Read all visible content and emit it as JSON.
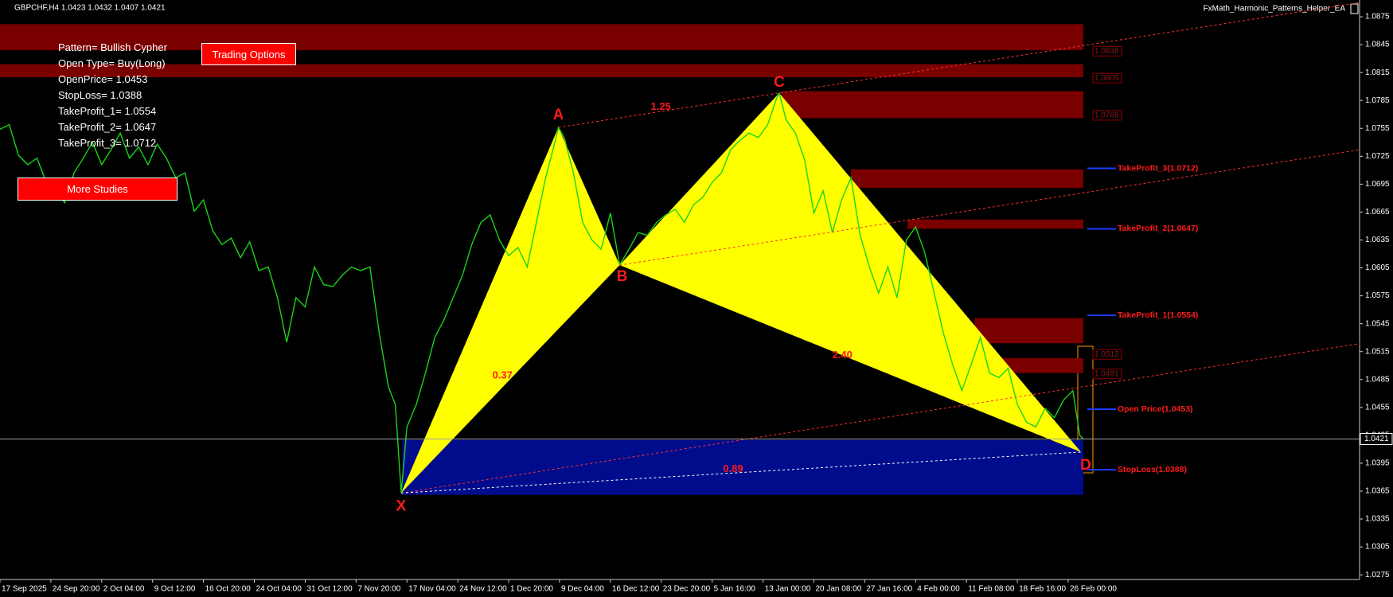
{
  "chart_data": {
    "type": "line",
    "title": "GBPCHF,H4  1.0423 1.0432 1.0407 1.0421",
    "ea_name": "FxMath_Harmonic_Patterns_Helper_EA",
    "color": "#19d419",
    "x": [
      0,
      8,
      16,
      24,
      32,
      40,
      48,
      56,
      64,
      72,
      80,
      88,
      96,
      104,
      112,
      120,
      128,
      136,
      144,
      152,
      160,
      168,
      176,
      184,
      192,
      200,
      208,
      216,
      224,
      232,
      240,
      248,
      256,
      264,
      272,
      280,
      288,
      296,
      304,
      312,
      320,
      328,
      336,
      342,
      347,
      352,
      360,
      368,
      376,
      384,
      392,
      400,
      408,
      416,
      424,
      432,
      440,
      448,
      456,
      464,
      472,
      480,
      483,
      488,
      496,
      504,
      512,
      520,
      528,
      536,
      544,
      552,
      560,
      568,
      576,
      584,
      592,
      600,
      608,
      616,
      624,
      632,
      640,
      648,
      656,
      664,
      672,
      674,
      680,
      688,
      696,
      704,
      712,
      720,
      728,
      736,
      744,
      752,
      760,
      768,
      776,
      784,
      792,
      800,
      808,
      816,
      824,
      832,
      840,
      848,
      856,
      864,
      872,
      880,
      888,
      896,
      904,
      912,
      920,
      928,
      934,
      937
    ],
    "values": [
      1.0754,
      1.0759,
      1.0726,
      1.0716,
      1.0723,
      1.0697,
      1.0688,
      1.0675,
      1.0707,
      1.0723,
      1.074,
      1.0716,
      1.0732,
      1.075,
      1.0723,
      1.0735,
      1.0716,
      1.0738,
      1.0723,
      1.0702,
      1.0707,
      1.0666,
      1.0678,
      1.0645,
      1.063,
      1.0637,
      1.0616,
      1.0633,
      1.0602,
      1.0606,
      1.0573,
      1.0525,
      1.0573,
      1.0563,
      1.0606,
      1.0587,
      1.0585,
      1.0597,
      1.0606,
      1.0602,
      1.0606,
      1.0535,
      1.0477,
      1.0458,
      1.0363,
      1.0434,
      1.0458,
      1.0492,
      1.053,
      1.0549,
      1.0573,
      1.0597,
      1.063,
      1.0654,
      1.0662,
      1.0635,
      1.0618,
      1.0627,
      1.0606,
      1.0654,
      1.0702,
      1.074,
      1.0756,
      1.0745,
      1.0707,
      1.0654,
      1.0635,
      1.0625,
      1.0664,
      1.0608,
      1.0625,
      1.0643,
      1.064,
      1.0654,
      1.0662,
      1.0668,
      1.0654,
      1.0673,
      1.0681,
      1.0697,
      1.0707,
      1.0732,
      1.0742,
      1.075,
      1.0745,
      1.0759,
      1.0788,
      1.0793,
      1.0764,
      1.075,
      1.0721,
      1.0664,
      1.0688,
      1.0643,
      1.0678,
      1.0702,
      1.064,
      1.0606,
      1.0578,
      1.0606,
      1.0573,
      1.0635,
      1.0649,
      1.0621,
      1.0578,
      1.0535,
      1.0501,
      1.0473,
      1.0501,
      1.053,
      1.0492,
      1.0487,
      1.0497,
      1.0458,
      1.0439,
      1.0434,
      1.0454,
      1.0444,
      1.0463,
      1.0473,
      1.0425,
      1.0421
    ],
    "xlim": [
      0,
      1176
    ],
    "ylim": [
      1.027,
      1.0893
    ],
    "xticks": [
      {
        "value": 0,
        "label": "17 Sep 2025"
      },
      {
        "value": 44,
        "label": "24 Sep 20:00"
      },
      {
        "value": 88,
        "label": "2 Oct 04:00"
      },
      {
        "value": 132,
        "label": "9 Oct 12:00"
      },
      {
        "value": 176,
        "label": "16 Oct 20:00"
      },
      {
        "value": 220,
        "label": "24 Oct 04:00"
      },
      {
        "value": 264,
        "label": "31 Oct 12:00"
      },
      {
        "value": 308,
        "label": "7 Nov 20:00"
      },
      {
        "value": 352,
        "label": "17 Nov 04:00"
      },
      {
        "value": 396,
        "label": "24 Nov 12:00"
      },
      {
        "value": 440,
        "label": "1 Dec 20:00"
      },
      {
        "value": 484,
        "label": "9 Dec 04:00"
      },
      {
        "value": 528,
        "label": "16 Dec 12:00"
      },
      {
        "value": 572,
        "label": "23 Dec 20:00"
      },
      {
        "value": 616,
        "label": "5 Jan 16:00"
      },
      {
        "value": 660,
        "label": "13 Jan 00:00"
      },
      {
        "value": 704,
        "label": "20 Jan 08:00"
      },
      {
        "value": 748,
        "label": "27 Jan 16:00"
      },
      {
        "value": 792,
        "label": "4 Feb 00:00"
      },
      {
        "value": 836,
        "label": "11 Feb 08:00"
      },
      {
        "value": 880,
        "label": "18 Feb 16:00"
      },
      {
        "value": 924,
        "label": "26 Feb 00:00"
      }
    ],
    "yticks": [
      1.0875,
      1.0845,
      1.0815,
      1.0785,
      1.0755,
      1.0725,
      1.0695,
      1.0665,
      1.0635,
      1.0605,
      1.0575,
      1.0545,
      1.0515,
      1.0485,
      1.0455,
      1.0425,
      1.0395,
      1.0365,
      1.0335,
      1.0305,
      1.0275
    ],
    "current_price": 1.0421,
    "pattern_points": [
      {
        "label": "X",
        "x": 347,
        "price": 1.0363
      },
      {
        "label": "A",
        "x": 483,
        "price": 1.0756
      },
      {
        "label": "B",
        "x": 536,
        "price": 1.0608
      },
      {
        "label": "C",
        "x": 674,
        "price": 1.0793
      },
      {
        "label": "D",
        "x": 935,
        "price": 1.0407
      }
    ],
    "pattern_color": "#ffff00",
    "ratios": [
      "0.37",
      "1.25",
      "2.40",
      "0.89"
    ],
    "zones": [
      {
        "start": 0,
        "end": 937,
        "top": 1.0867,
        "bottom": 1.0839,
        "color": "#7a0000"
      },
      {
        "start": 0,
        "end": 937,
        "top": 1.0824,
        "bottom": 1.081,
        "color": "#7a0000"
      },
      {
        "start": 676,
        "end": 937,
        "top": 1.0795,
        "bottom": 1.0766,
        "color": "#7a0000"
      },
      {
        "start": 736,
        "end": 937,
        "top": 1.0711,
        "bottom": 1.0691,
        "color": "#7a0000"
      },
      {
        "start": 785,
        "end": 937,
        "top": 1.0657,
        "bottom": 1.0647,
        "color": "#7a0000"
      },
      {
        "start": 843,
        "end": 937,
        "top": 1.0551,
        "bottom": 1.0524,
        "color": "#7a0000"
      },
      {
        "start": 843,
        "end": 937,
        "top": 1.0508,
        "bottom": 1.0492,
        "color": "#7a0000"
      },
      {
        "start": 348,
        "end": 937,
        "top": 1.042,
        "bottom": 1.0361,
        "color": "#000c8c"
      }
    ],
    "zone_labels": [
      {
        "label": "1.0838",
        "value": 1.0838
      },
      {
        "label": "1.0809",
        "value": 1.0809
      },
      {
        "label": "1.0769",
        "value": 1.0769
      },
      {
        "label": "1.0512",
        "value": 1.0512
      },
      {
        "label": "1.0491",
        "value": 1.0491
      }
    ],
    "levels": [
      {
        "label": "TakeProfit_3(1.0712)",
        "value": 1.0712
      },
      {
        "label": "TakeProfit_2(1.0647)",
        "value": 1.0647
      },
      {
        "label": "TakeProfit_1(1.0554)",
        "value": 1.0554
      },
      {
        "label": "Open Price(1.0453)",
        "value": 1.0453
      },
      {
        "label": "StopLoss(1.0388)",
        "value": 1.0388
      }
    ],
    "info": [
      "Pattern= Bullish Cypher",
      "Open Type= Buy(Long)",
      "OpenPrice= 1.0453",
      "StopLoss= 1.0388",
      "TakeProfit_1= 1.0554",
      "TakeProfit_2= 1.0647",
      "TakeProfit_3= 1.0712"
    ],
    "buttons": [
      "Trading Options",
      "More Studies"
    ]
  }
}
